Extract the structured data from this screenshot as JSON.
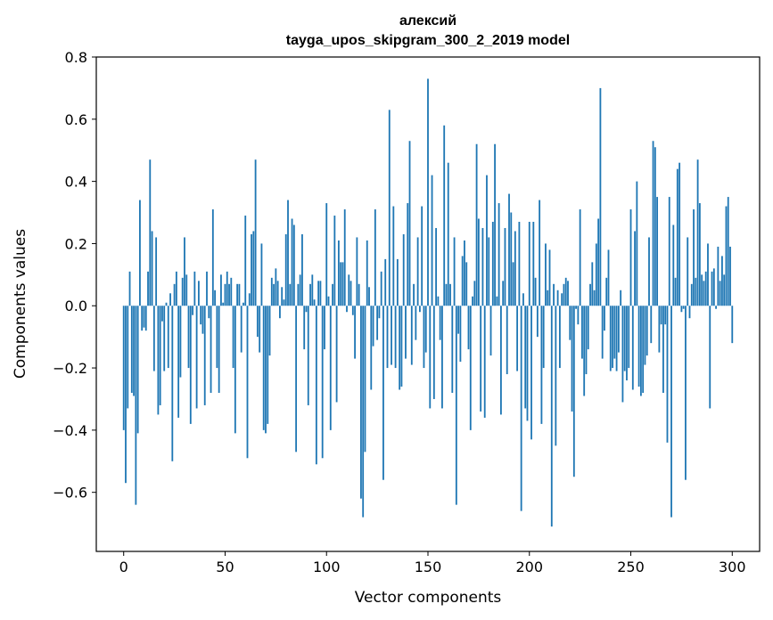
{
  "chart_data": {
    "type": "bar",
    "title": "алексий",
    "subtitle": "tayga_upos_skipgram_300_2_2019 model",
    "xlabel": "Vector components",
    "ylabel": "Components values",
    "xlim": [
      -13.5,
      313.5
    ],
    "ylim": [
      -0.79,
      0.8
    ],
    "xticks": [
      0,
      50,
      100,
      150,
      200,
      250,
      300
    ],
    "xtick_labels": [
      "0",
      "50",
      "100",
      "150",
      "200",
      "250",
      "300"
    ],
    "yticks": [
      -0.6,
      -0.4,
      -0.2,
      0.0,
      0.2,
      0.4,
      0.6,
      0.8
    ],
    "ytick_labels": [
      "−0.6",
      "−0.4",
      "−0.2",
      "0.0",
      "0.2",
      "0.4",
      "0.6",
      "0.8"
    ],
    "bar_color": "#1f77b4",
    "grid": false,
    "values": [
      -0.4,
      -0.57,
      -0.33,
      0.11,
      -0.28,
      -0.29,
      -0.64,
      -0.41,
      0.34,
      -0.08,
      -0.07,
      -0.08,
      0.11,
      0.47,
      0.24,
      -0.21,
      0.22,
      -0.35,
      -0.32,
      -0.05,
      -0.21,
      0.01,
      -0.2,
      0.04,
      -0.5,
      0.07,
      0.11,
      -0.36,
      -0.23,
      0.09,
      0.22,
      0.1,
      -0.2,
      -0.38,
      -0.03,
      0.11,
      -0.33,
      0.08,
      -0.06,
      -0.09,
      -0.32,
      0.11,
      -0.04,
      -0.28,
      0.31,
      0.05,
      -0.2,
      -0.28,
      0.1,
      0.01,
      0.07,
      0.11,
      0.07,
      0.09,
      -0.2,
      -0.41,
      0.07,
      0.07,
      -0.15,
      0.01,
      0.29,
      -0.49,
      0.04,
      0.23,
      0.24,
      0.47,
      -0.1,
      -0.15,
      0.2,
      -0.4,
      -0.41,
      -0.38,
      -0.16,
      0.09,
      0.07,
      0.12,
      0.08,
      -0.04,
      0.06,
      0.02,
      0.23,
      0.34,
      0.07,
      0.28,
      0.26,
      -0.47,
      0.07,
      0.1,
      0.23,
      -0.14,
      -0.02,
      -0.32,
      0.07,
      0.1,
      0.02,
      -0.51,
      0.08,
      0.08,
      -0.49,
      -0.14,
      0.33,
      0.03,
      -0.4,
      0.07,
      0.29,
      -0.31,
      0.21,
      0.14,
      0.14,
      0.31,
      -0.02,
      0.1,
      0.08,
      -0.03,
      -0.17,
      0.22,
      0.07,
      -0.62,
      -0.68,
      -0.47,
      0.21,
      0.06,
      -0.27,
      -0.13,
      0.31,
      -0.11,
      -0.04,
      0.11,
      -0.56,
      0.15,
      -0.2,
      0.63,
      -0.19,
      0.32,
      -0.2,
      0.15,
      -0.27,
      -0.26,
      0.23,
      -0.17,
      0.33,
      0.53,
      -0.19,
      0.07,
      -0.11,
      0.22,
      -0.02,
      0.32,
      -0.2,
      -0.15,
      0.73,
      -0.33,
      0.42,
      -0.3,
      0.25,
      0.03,
      -0.11,
      -0.33,
      0.58,
      0.07,
      0.46,
      0.07,
      -0.28,
      0.22,
      -0.64,
      -0.09,
      -0.18,
      0.16,
      0.21,
      0.14,
      -0.14,
      -0.4,
      0.03,
      0.08,
      0.52,
      0.28,
      -0.34,
      0.25,
      -0.36,
      0.42,
      0.22,
      -0.16,
      0.27,
      0.52,
      0.03,
      0.33,
      -0.35,
      0.08,
      0.25,
      -0.22,
      0.36,
      0.3,
      0.14,
      0.24,
      -0.21,
      0.27,
      -0.66,
      0.04,
      -0.33,
      -0.37,
      0.27,
      -0.43,
      0.27,
      0.09,
      -0.1,
      0.34,
      -0.38,
      -0.2,
      0.2,
      0.05,
      0.18,
      -0.71,
      0.07,
      -0.45,
      0.05,
      -0.2,
      0.04,
      0.07,
      0.09,
      0.08,
      -0.11,
      -0.34,
      -0.55,
      -0.01,
      -0.06,
      0.31,
      -0.17,
      -0.29,
      -0.22,
      -0.14,
      0.07,
      0.14,
      0.05,
      0.2,
      0.28,
      0.7,
      -0.17,
      -0.08,
      0.09,
      0.18,
      -0.21,
      -0.2,
      -0.17,
      -0.21,
      -0.15,
      0.05,
      -0.31,
      -0.21,
      -0.24,
      -0.2,
      0.31,
      -0.27,
      0.24,
      0.4,
      -0.26,
      -0.29,
      -0.28,
      -0.19,
      -0.16,
      0.22,
      -0.12,
      0.53,
      0.51,
      0.35,
      -0.15,
      -0.06,
      -0.28,
      -0.06,
      -0.44,
      0.35,
      -0.68,
      0.26,
      0.09,
      0.44,
      0.46,
      -0.02,
      -0.01,
      -0.56,
      0.22,
      -0.04,
      0.07,
      0.31,
      0.09,
      0.47,
      0.33,
      0.1,
      0.08,
      0.11,
      0.2,
      -0.33,
      0.11,
      0.12,
      -0.01,
      0.19,
      0.08,
      0.16,
      0.1,
      0.32,
      0.35,
      0.19,
      -0.12
    ]
  }
}
